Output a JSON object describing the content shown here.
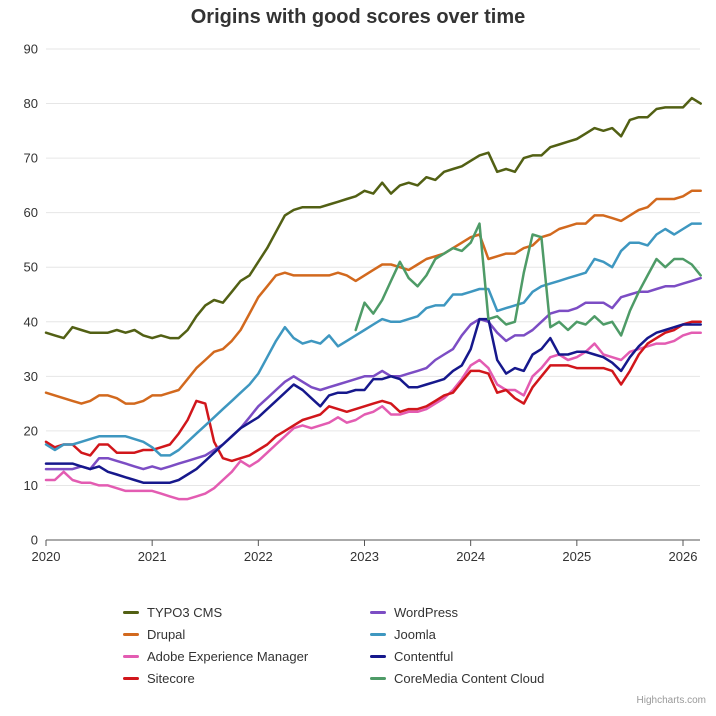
{
  "credits": {
    "label": "Highcharts.com"
  },
  "chart_data": {
    "type": "line",
    "title": "Origins with good scores over time",
    "xlabel": "",
    "ylabel": "",
    "x_start": "2020-01",
    "x_interval": "monthly",
    "x_tick_labels": [
      "2020",
      "2021",
      "2022",
      "2023",
      "2024",
      "2025",
      "2026"
    ],
    "y_tick_labels": [
      "0",
      "10",
      "20",
      "30",
      "40",
      "50",
      "60",
      "70",
      "80",
      "90"
    ],
    "ylim": [
      0,
      90
    ],
    "grid": "horizontal",
    "legend_position": "bottom",
    "series": [
      {
        "name": "TYPO3 CMS",
        "color": "#526014",
        "values": [
          38,
          37.5,
          37,
          39,
          38.5,
          38,
          38,
          38,
          38.5,
          38,
          38.5,
          37.5,
          37,
          37.5,
          37,
          37,
          38.5,
          41,
          43,
          44,
          43.5,
          45.5,
          47.5,
          48.5,
          51,
          53.5,
          56.5,
          59.5,
          60.5,
          61,
          61,
          61,
          61.5,
          62,
          62.5,
          63,
          64,
          63.5,
          65.5,
          63.5,
          65,
          65.5,
          65,
          66.5,
          66,
          67.5,
          68,
          68.5,
          69.5,
          70.5,
          71,
          67.5,
          68,
          67.5,
          70,
          70.5,
          70.5,
          72,
          72.5,
          73,
          73.5,
          74.5,
          75.5,
          75,
          75.5,
          74,
          77,
          77.5,
          77.5,
          79,
          79.3,
          79.3,
          79.3,
          81,
          80
        ]
      },
      {
        "name": "Drupal",
        "color": "#d2691e",
        "values": [
          27,
          26.5,
          26,
          25.5,
          25,
          25.5,
          26.5,
          26.5,
          26,
          25,
          25,
          25.5,
          26.5,
          26.5,
          27,
          27.5,
          29.5,
          31.5,
          33,
          34.5,
          35,
          36.5,
          38.5,
          41.5,
          44.5,
          46.5,
          48.5,
          49,
          48.5,
          48.5,
          48.5,
          48.5,
          48.5,
          49,
          48.5,
          47.5,
          48.5,
          49.5,
          50.5,
          50.5,
          50,
          49.5,
          50.5,
          51.5,
          52,
          52.5,
          53.5,
          54.5,
          55.5,
          56,
          51.5,
          52,
          52.5,
          52.5,
          53.5,
          54,
          55.5,
          56,
          57,
          57.5,
          58,
          58,
          59.5,
          59.5,
          59,
          58.5,
          59.5,
          60.5,
          61,
          62.5,
          62.5,
          62.5,
          63,
          64,
          64
        ]
      },
      {
        "name": "Adobe Experience Manager",
        "color": "#e35cb2",
        "values": [
          11,
          11,
          12.5,
          11,
          10.5,
          10.5,
          10,
          10,
          9.5,
          9,
          9,
          9,
          9,
          8.5,
          8,
          7.5,
          7.5,
          8,
          8.5,
          9.5,
          11,
          12.5,
          14.5,
          13.5,
          14.5,
          16,
          17.5,
          19,
          20.5,
          21,
          20.5,
          21,
          21.5,
          22.5,
          21.5,
          22,
          23,
          23.5,
          24.5,
          23,
          23,
          23.5,
          23.5,
          24,
          25,
          26,
          27.5,
          29.5,
          32,
          33,
          31.5,
          28.5,
          27.5,
          27.5,
          26.5,
          30,
          31.5,
          33.5,
          34,
          33,
          33.5,
          34.5,
          36,
          34,
          33.5,
          33,
          34.5,
          35,
          35.5,
          36,
          36,
          36.5,
          37.5,
          38,
          38
        ]
      },
      {
        "name": "Sitecore",
        "color": "#d1161b",
        "values": [
          18,
          17,
          17.5,
          17.5,
          16,
          15.5,
          17.5,
          17.5,
          16,
          16,
          16,
          16.5,
          16.5,
          17,
          17.5,
          19.5,
          22,
          25.5,
          25,
          18,
          15,
          14.5,
          15,
          15.5,
          16.5,
          17.5,
          19,
          20,
          21,
          22,
          22.5,
          23,
          24.5,
          24,
          23.5,
          24,
          24.5,
          25,
          25.5,
          25,
          23.5,
          24,
          24,
          24.5,
          25.5,
          26.5,
          27,
          29,
          31,
          31,
          30.5,
          27,
          27.5,
          26,
          25,
          28,
          30,
          32,
          32,
          32,
          31.5,
          31.5,
          31.5,
          31.5,
          31,
          28.5,
          31,
          34,
          36,
          37,
          38,
          38.5,
          39.5,
          40,
          40
        ]
      },
      {
        "name": "WordPress",
        "color": "#7c4dc4",
        "values": [
          13,
          13,
          13,
          13,
          13.5,
          13,
          15,
          15,
          14.5,
          14,
          13.5,
          13,
          13.5,
          13,
          13.5,
          14,
          14.5,
          15,
          15.5,
          16.5,
          17.5,
          19,
          20.5,
          22.5,
          24.5,
          26,
          27.5,
          29,
          30,
          29,
          28,
          27.5,
          28,
          28.5,
          29,
          29.5,
          30,
          30,
          31,
          30,
          30,
          30.5,
          31,
          31.5,
          33,
          34,
          35,
          37.5,
          39.5,
          40.5,
          40,
          38,
          36.5,
          37.5,
          37.5,
          38.5,
          40,
          41.5,
          42,
          42,
          42.5,
          43.5,
          43.5,
          43.5,
          42.5,
          44.5,
          45,
          45.5,
          45.5,
          46,
          46.5,
          46.5,
          47,
          47.5,
          48
        ]
      },
      {
        "name": "Joomla",
        "color": "#3e97c0",
        "values": [
          17.5,
          16.5,
          17.5,
          17.5,
          18,
          18.5,
          19,
          19,
          19,
          19,
          18.5,
          18,
          17,
          15.5,
          15.5,
          16.5,
          18,
          19.5,
          21,
          22.5,
          24,
          25.5,
          27,
          28.5,
          30.5,
          33.5,
          36.5,
          39,
          37,
          36,
          36.5,
          36,
          37.5,
          35.5,
          36.5,
          37.5,
          38.5,
          39.5,
          40.5,
          40,
          40,
          40.5,
          41,
          42.5,
          43,
          43,
          45,
          45,
          45.5,
          46,
          46,
          42,
          42.5,
          43,
          43.5,
          45.5,
          46.5,
          47,
          47.5,
          48,
          48.5,
          49,
          51.5,
          51,
          50,
          53,
          54.5,
          54.5,
          54,
          56,
          57,
          56,
          57,
          58,
          58
        ]
      },
      {
        "name": "Contentful",
        "color": "#16188c",
        "values": [
          14,
          14,
          14,
          14,
          13.5,
          13,
          13.5,
          12.5,
          12,
          11.5,
          11,
          10.5,
          10.5,
          10.5,
          10.5,
          11,
          12,
          13,
          14.5,
          16,
          17.5,
          19,
          20.5,
          21.5,
          22.5,
          24,
          25.5,
          27,
          28.5,
          27.5,
          26,
          24.5,
          26.5,
          27,
          27,
          27.5,
          27.5,
          29.5,
          29.5,
          30,
          29.5,
          28,
          28,
          28.5,
          29,
          29.5,
          31,
          32,
          35,
          40.5,
          40.5,
          33,
          30.5,
          31.5,
          31,
          34,
          35,
          37,
          34,
          34,
          34.5,
          34.5,
          34,
          33.5,
          32.5,
          31,
          33.5,
          35.5,
          37,
          38,
          38.5,
          39,
          39.5,
          39.5,
          39.5
        ]
      },
      {
        "name": "CoreMedia Content Cloud",
        "color": "#4e9b67",
        "values": [
          null,
          null,
          null,
          null,
          null,
          null,
          null,
          null,
          null,
          null,
          null,
          null,
          null,
          null,
          null,
          null,
          null,
          null,
          null,
          null,
          null,
          null,
          null,
          null,
          null,
          null,
          null,
          null,
          null,
          null,
          null,
          null,
          null,
          null,
          null,
          38.5,
          43.5,
          41.5,
          44,
          47.5,
          51,
          48,
          46.5,
          48.5,
          51.5,
          52.5,
          53.5,
          53,
          54.5,
          58,
          40.5,
          41,
          39.5,
          40,
          49,
          56,
          55.5,
          39,
          40,
          38.5,
          40,
          39.5,
          41,
          39.5,
          40,
          37.5,
          42,
          45.5,
          48.5,
          51.5,
          50,
          51.5,
          51.5,
          50.5,
          48.5
        ]
      }
    ]
  }
}
